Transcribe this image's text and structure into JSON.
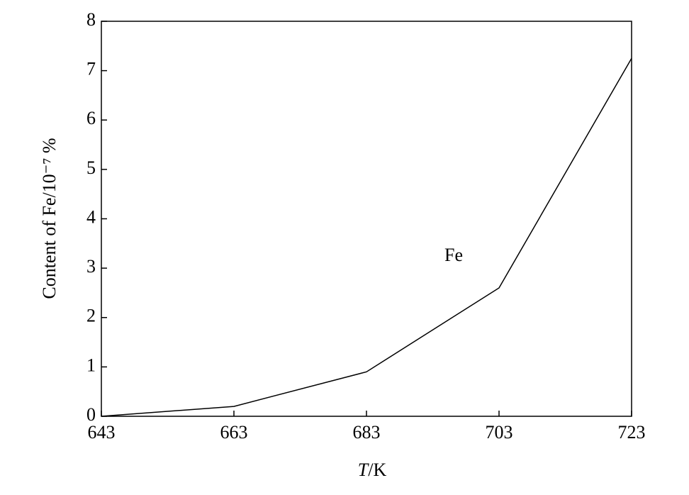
{
  "chart_data": {
    "type": "line",
    "x": [
      643,
      663,
      683,
      703,
      723
    ],
    "series": [
      {
        "name": "Fe",
        "color": "#000000",
        "values": [
          0,
          0.2,
          0.9,
          2.6,
          7.25
        ]
      }
    ],
    "xlabel": "T/K",
    "ylabel": "Content of Fe/10⁻⁷ %",
    "xlim": [
      643,
      723
    ],
    "xticks": [
      643,
      663,
      683,
      703,
      723
    ],
    "ylim": [
      0,
      8
    ],
    "yticks": [
      0,
      1,
      2,
      3,
      4,
      5,
      6,
      7,
      8
    ],
    "grid": false
  }
}
